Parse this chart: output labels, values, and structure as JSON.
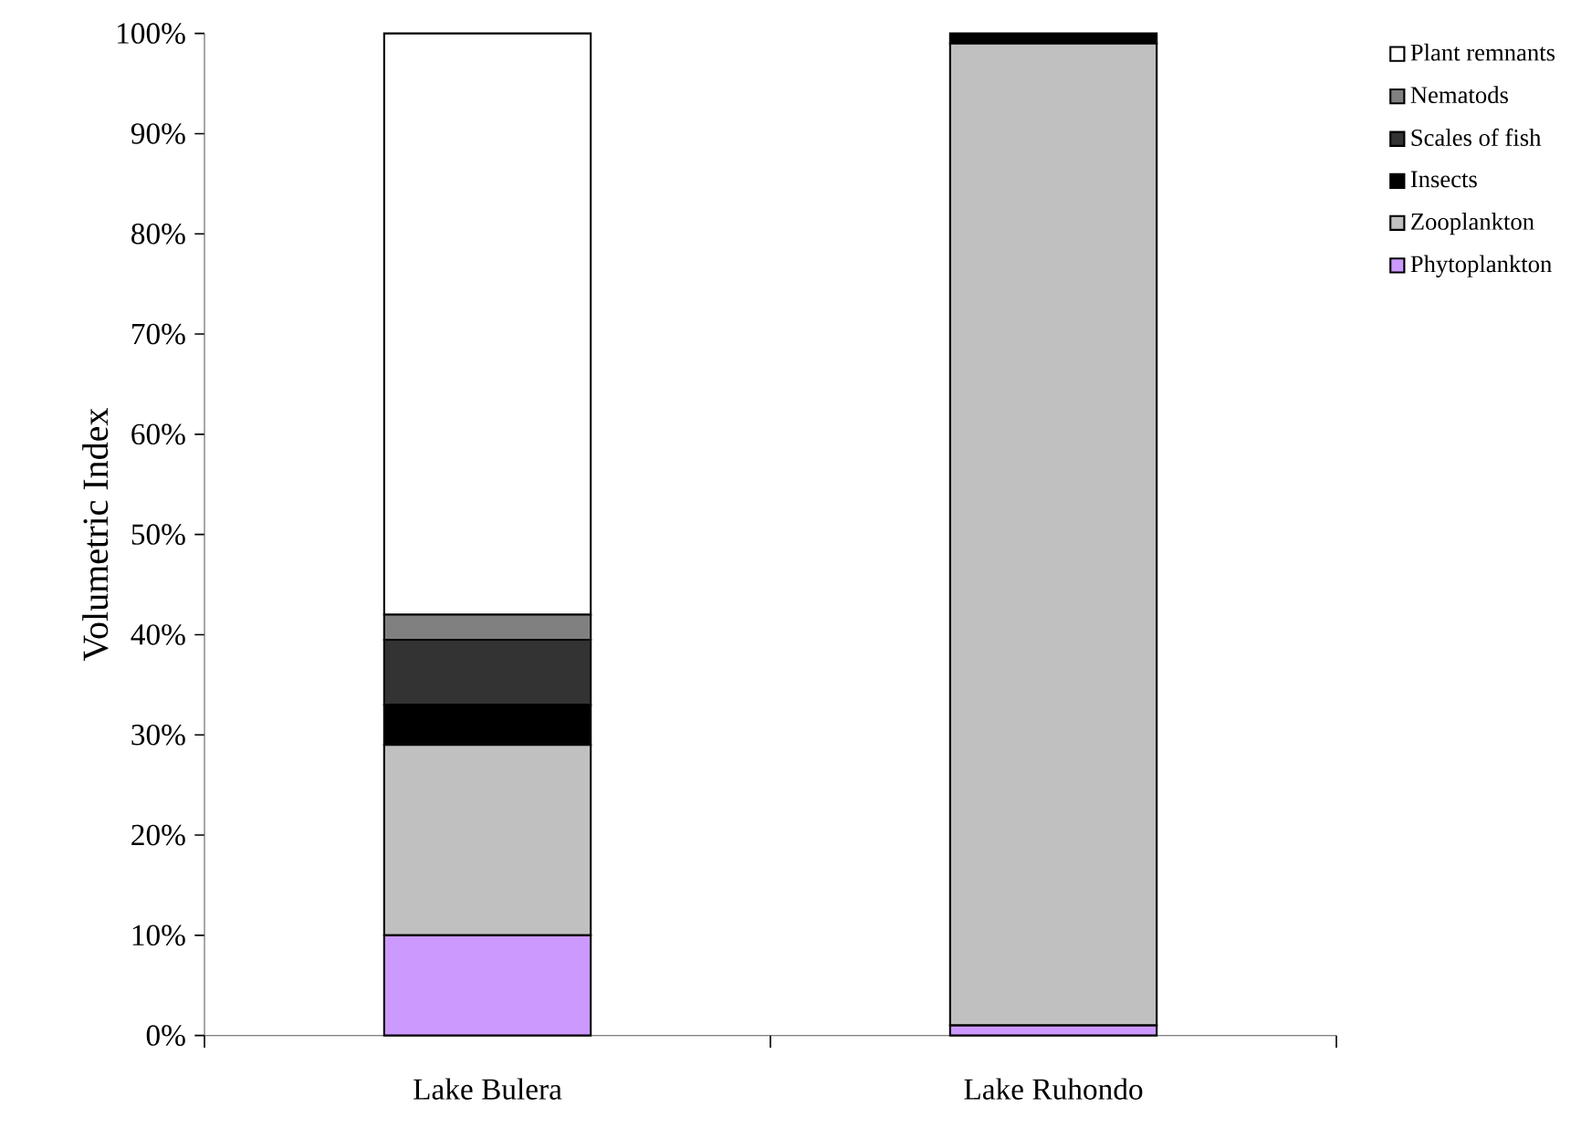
{
  "chart_data": {
    "type": "bar",
    "stacked": true,
    "ylabel": "Volumetric Index",
    "categories": [
      "Lake Bulera",
      "Lake Ruhondo"
    ],
    "series": [
      {
        "name": "Phytoplankton",
        "color": "#cc99ff",
        "values": [
          10,
          1
        ]
      },
      {
        "name": "Zooplankton",
        "color": "#c0c0c0",
        "values": [
          19,
          98
        ]
      },
      {
        "name": "Insects",
        "color": "#000000",
        "values": [
          4,
          1
        ]
      },
      {
        "name": "Scales of fish",
        "color": "#333333",
        "values": [
          6.5,
          0
        ]
      },
      {
        "name": "Nematods",
        "color": "#808080",
        "values": [
          2.5,
          0
        ]
      },
      {
        "name": "Plant remnants",
        "color": "#ffffff",
        "values": [
          58,
          0
        ]
      }
    ],
    "ylim": [
      0,
      100
    ],
    "yticks": [
      {
        "value": 0,
        "label": "0%"
      },
      {
        "value": 10,
        "label": "10%"
      },
      {
        "value": 20,
        "label": "20%"
      },
      {
        "value": 30,
        "label": "30%"
      },
      {
        "value": 40,
        "label": "40%"
      },
      {
        "value": 50,
        "label": "50%"
      },
      {
        "value": 60,
        "label": "60%"
      },
      {
        "value": 70,
        "label": "70%"
      },
      {
        "value": 80,
        "label": "80%"
      },
      {
        "value": 90,
        "label": "90%"
      },
      {
        "value": 100,
        "label": "100%"
      }
    ],
    "legend": "right"
  }
}
